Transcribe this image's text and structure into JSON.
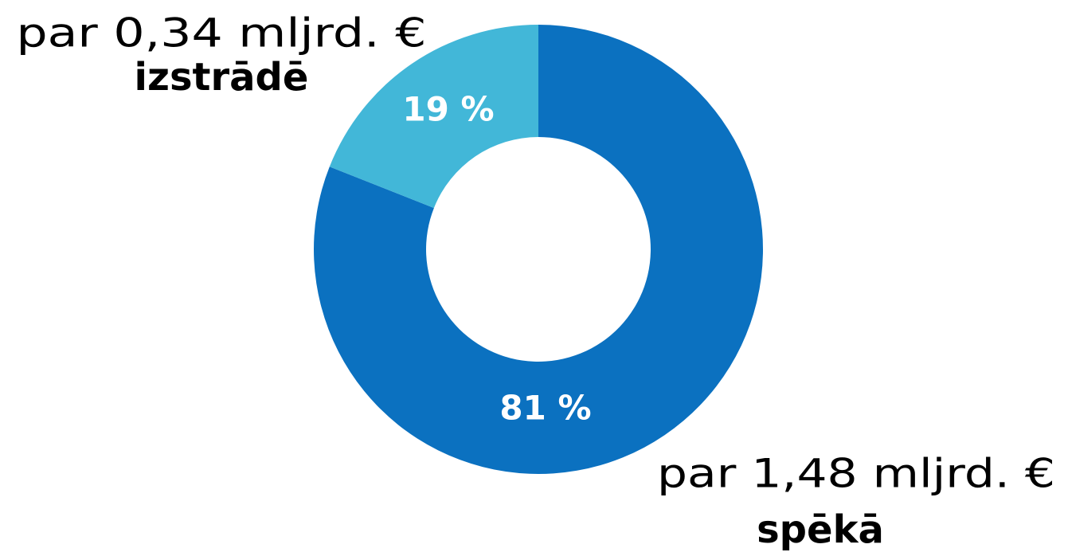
{
  "chart_data": {
    "type": "donut",
    "categories": [
      "spēkā",
      "izstrādē"
    ],
    "amount_labels": [
      "par 1,48 mljrd. €",
      "par 0,34 mljrd. €"
    ],
    "values": [
      81,
      19
    ],
    "value_labels": [
      "81 %",
      "19 %"
    ],
    "colors": [
      "#0b71c0",
      "#42b7d8"
    ]
  }
}
